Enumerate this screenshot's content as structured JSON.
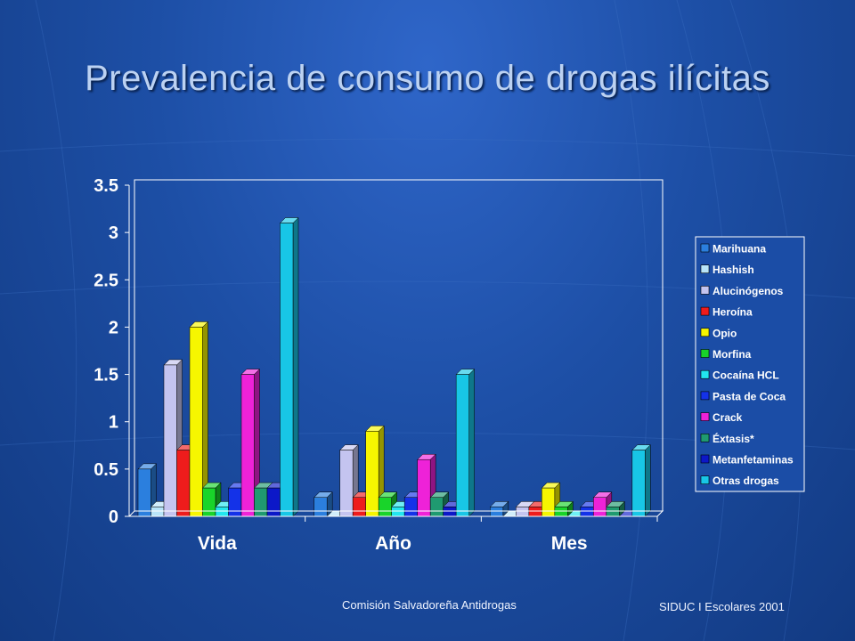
{
  "title": "Prevalencia de consumo de drogas ilícitas",
  "footer": {
    "left": "Comisión Salvadoreña Antidrogas",
    "right": "SIDUC I Escolares 2001"
  },
  "chart_data": {
    "type": "bar",
    "title": "",
    "xlabel": "",
    "ylabel": "",
    "ylim": [
      0,
      3.5
    ],
    "yticks": [
      0,
      0.5,
      1,
      1.5,
      2,
      2.5,
      3,
      3.5
    ],
    "ytick_labels": [
      "0",
      "0.5",
      "1",
      "1.5",
      "2",
      "2.5",
      "3",
      "3.5"
    ],
    "categories": [
      "Vida",
      "Año",
      "Mes"
    ],
    "legend_position": "right",
    "grid": false,
    "style": "3d-clustered",
    "series": [
      {
        "name": "Marihuana",
        "color": "#2b7fde",
        "values": [
          0.5,
          0.2,
          0.1
        ]
      },
      {
        "name": "Hashish",
        "color": "#b8e4f8",
        "values": [
          0.1,
          0.0,
          0.0
        ]
      },
      {
        "name": "Alucinógenos",
        "color": "#c4c4f0",
        "values": [
          1.6,
          0.7,
          0.1
        ]
      },
      {
        "name": "Heroína",
        "color": "#ee1c1c",
        "values": [
          0.7,
          0.2,
          0.1
        ]
      },
      {
        "name": "Opio",
        "color": "#f6f600",
        "values": [
          2.0,
          0.9,
          0.3
        ]
      },
      {
        "name": "Morfina",
        "color": "#19d42a",
        "values": [
          0.3,
          0.2,
          0.1
        ]
      },
      {
        "name": "Cocaína HCL",
        "color": "#22e6ee",
        "values": [
          0.1,
          0.1,
          0.0
        ]
      },
      {
        "name": "Pasta de Coca",
        "color": "#1432e8",
        "values": [
          0.3,
          0.2,
          0.1
        ]
      },
      {
        "name": "Crack",
        "color": "#ee22d8",
        "values": [
          1.5,
          0.6,
          0.2
        ]
      },
      {
        "name": "Éxtasis*",
        "color": "#1f9a70",
        "values": [
          0.3,
          0.2,
          0.1
        ]
      },
      {
        "name": "Metanfetaminas",
        "color": "#0c18c8",
        "values": [
          0.3,
          0.1,
          0.0
        ]
      },
      {
        "name": "Otras drogas",
        "color": "#18c6e6",
        "values": [
          3.1,
          1.5,
          0.7
        ]
      }
    ]
  }
}
